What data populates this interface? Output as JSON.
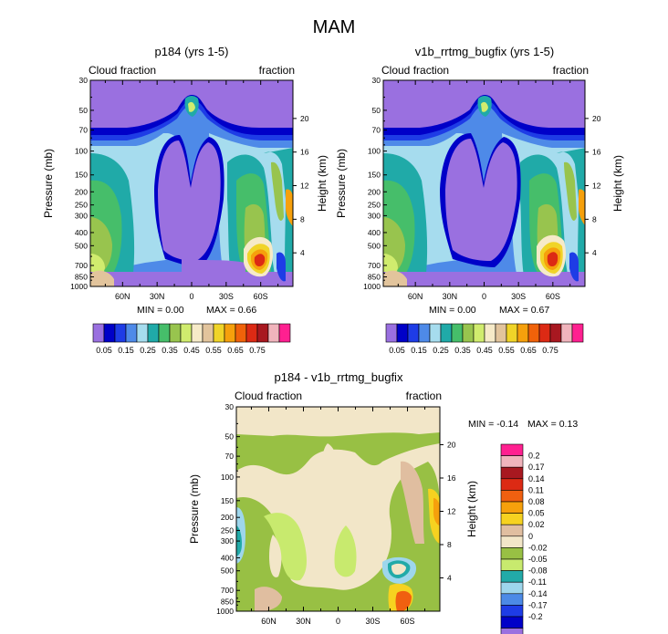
{
  "figure": {
    "title": "MAM"
  },
  "chart_data": [
    {
      "type": "heatmap",
      "title": "p184 (yrs 1-5)",
      "left_string": "Cloud fraction",
      "right_string": "fraction",
      "xlabel": "",
      "ylabel": "Pressure (mb)",
      "ylabel_right": "Height (km)",
      "x_ticks": [
        "60N",
        "30N",
        "0",
        "30S",
        "60S"
      ],
      "y_ticks": [
        "30",
        "50",
        "70",
        "100",
        "150",
        "200",
        "250",
        "300",
        "400",
        "500",
        "700",
        "850",
        "1000"
      ],
      "y_ticks_right": [
        "20",
        "16",
        "12",
        "8",
        "4"
      ],
      "min_label": "MIN =   0.00",
      "max_label": "MAX =   0.66",
      "colorbar": {
        "orientation": "horizontal",
        "labels": [
          "0.05",
          "0.15",
          "0.25",
          "0.35",
          "0.45",
          "0.55",
          "0.65",
          "0.75"
        ],
        "colors": [
          "#9a70e0",
          "#0000c8",
          "#1e3ce6",
          "#4e8ae8",
          "#a6dcee",
          "#20aaa8",
          "#46be6a",
          "#98c44e",
          "#d0ec6e",
          "#f6eac8",
          "#e2c49c",
          "#f0d428",
          "#f6a00c",
          "#f0620a",
          "#dc2a14",
          "#a81820",
          "#f0b4bc",
          "#ff2090"
        ]
      }
    },
    {
      "type": "heatmap",
      "title": "v1b_rrtmg_bugfix (yrs 1-5)",
      "left_string": "Cloud fraction",
      "right_string": "fraction",
      "xlabel": "",
      "ylabel": "Pressure (mb)",
      "ylabel_right": "Height (km)",
      "x_ticks": [
        "60N",
        "30N",
        "0",
        "30S",
        "60S"
      ],
      "y_ticks": [
        "30",
        "50",
        "70",
        "100",
        "150",
        "200",
        "250",
        "300",
        "400",
        "500",
        "700",
        "850",
        "1000"
      ],
      "y_ticks_right": [
        "20",
        "16",
        "12",
        "8",
        "4"
      ],
      "min_label": "MIN =   0.00",
      "max_label": "MAX =   0.67",
      "colorbar": {
        "orientation": "horizontal",
        "labels": [
          "0.05",
          "0.15",
          "0.25",
          "0.35",
          "0.45",
          "0.55",
          "0.65",
          "0.75"
        ]
      }
    },
    {
      "type": "heatmap",
      "title": "p184 - v1b_rrtmg_bugfix",
      "left_string": "Cloud fraction",
      "right_string": "fraction",
      "xlabel": "",
      "ylabel": "Pressure (mb)",
      "ylabel_right": "Height (km)",
      "x_ticks": [
        "60N",
        "30N",
        "0",
        "30S",
        "60S"
      ],
      "y_ticks": [
        "30",
        "50",
        "70",
        "100",
        "150",
        "200",
        "250",
        "300",
        "400",
        "500",
        "700",
        "850",
        "1000"
      ],
      "y_ticks_right": [
        "20",
        "16",
        "12",
        "8",
        "4"
      ],
      "min_label": "MIN = -0.14",
      "max_label": "MAX =   0.13",
      "colorbar": {
        "orientation": "vertical",
        "labels": [
          "0.2",
          "0.17",
          "0.14",
          "0.11",
          "0.08",
          "0.05",
          "0.02",
          "0",
          "-0.02",
          "-0.05",
          "-0.08",
          "-0.11",
          "-0.14",
          "-0.17",
          "-0.2"
        ],
        "colors": [
          "#ff2090",
          "#f0b4bc",
          "#a81820",
          "#dc2a14",
          "#f06010",
          "#f6a00c",
          "#f6d220",
          "#e0bea0",
          "#f2e6c8",
          "#98c044",
          "#c8ea6e",
          "#22aaa8",
          "#9ed6ec",
          "#4c8ae6",
          "#1e3ce6",
          "#0000c8",
          "#9a70e0"
        ]
      }
    }
  ]
}
